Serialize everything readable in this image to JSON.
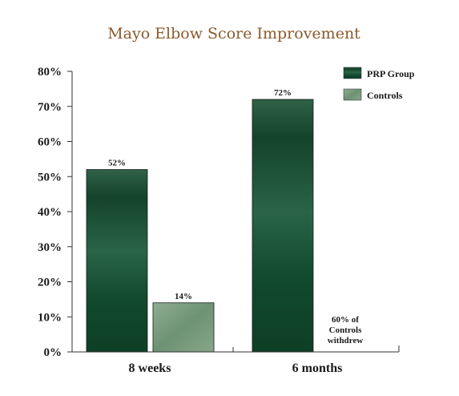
{
  "chart_data": {
    "type": "bar",
    "title": "Mayo Elbow Score Improvement",
    "categories": [
      "8 weeks",
      "6 months"
    ],
    "ylim": [
      0,
      80
    ],
    "yticks": [
      "0%",
      "10%",
      "20%",
      "30%",
      "40%",
      "50%",
      "60%",
      "70%",
      "80%"
    ],
    "series": [
      {
        "name": "PRP Group",
        "values": [
          52,
          72
        ],
        "labels": [
          "52%",
          "72%"
        ],
        "color": "#1f5a3b"
      },
      {
        "name": "Controls",
        "values": [
          14,
          null
        ],
        "labels": [
          "14%",
          ""
        ],
        "color": "#7fa083"
      }
    ],
    "annotations": [
      {
        "lines": [
          "60% of",
          "Controls",
          "withdrew"
        ]
      }
    ],
    "legend_position": "top-right",
    "grid": false
  }
}
